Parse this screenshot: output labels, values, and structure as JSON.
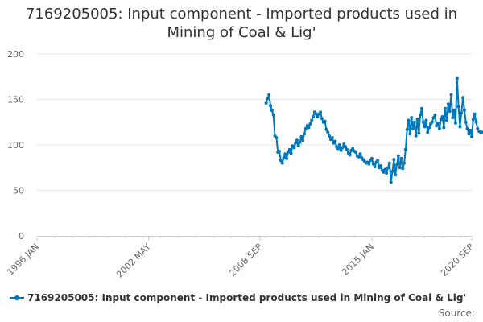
{
  "chart_data": {
    "type": "line",
    "title_lines": [
      "7169205005: Input component - Imported products used in",
      "Mining of Coal & Lig'"
    ],
    "xlabel": "",
    "ylabel": "",
    "x_ticks": [
      "1996 JAN",
      "2002 MAY",
      "2008 SEP",
      "2015 JAN",
      "2020 SEP"
    ],
    "x_range": [
      "1996-01",
      "2020-09"
    ],
    "y_ticks": [
      0,
      50,
      100,
      150,
      200
    ],
    "ylim": [
      0,
      200
    ],
    "grid": true,
    "legend_position": "bottom-left",
    "series": [
      {
        "name": "7169205005: Input component - Imported products used in Mining of Coal & Lig'",
        "color": "#0077bb",
        "points": [
          [
            "2009-01",
            146
          ],
          [
            "2009-02",
            151
          ],
          [
            "2009-03",
            155
          ],
          [
            "2009-04",
            143
          ],
          [
            "2009-05",
            138
          ],
          [
            "2009-06",
            133
          ],
          [
            "2009-07",
            110
          ],
          [
            "2009-08",
            108
          ],
          [
            "2009-09",
            92
          ],
          [
            "2009-10",
            93
          ],
          [
            "2009-11",
            83
          ],
          [
            "2009-12",
            80
          ],
          [
            "2010-01",
            86
          ],
          [
            "2010-02",
            90
          ],
          [
            "2010-03",
            85
          ],
          [
            "2010-04",
            92
          ],
          [
            "2010-05",
            95
          ],
          [
            "2010-06",
            91
          ],
          [
            "2010-07",
            99
          ],
          [
            "2010-08",
            97
          ],
          [
            "2010-09",
            102
          ],
          [
            "2010-10",
            105
          ],
          [
            "2010-11",
            99
          ],
          [
            "2010-12",
            103
          ],
          [
            "2011-01",
            109
          ],
          [
            "2011-02",
            105
          ],
          [
            "2011-03",
            112
          ],
          [
            "2011-04",
            118
          ],
          [
            "2011-05",
            121
          ],
          [
            "2011-06",
            119
          ],
          [
            "2011-07",
            123
          ],
          [
            "2011-08",
            127
          ],
          [
            "2011-09",
            131
          ],
          [
            "2011-10",
            136
          ],
          [
            "2011-11",
            134
          ],
          [
            "2011-12",
            131
          ],
          [
            "2012-01",
            134
          ],
          [
            "2012-02",
            136
          ],
          [
            "2012-03",
            129
          ],
          [
            "2012-04",
            125
          ],
          [
            "2012-05",
            126
          ],
          [
            "2012-06",
            117
          ],
          [
            "2012-07",
            114
          ],
          [
            "2012-08",
            110
          ],
          [
            "2012-09",
            106
          ],
          [
            "2012-10",
            108
          ],
          [
            "2012-11",
            102
          ],
          [
            "2012-12",
            104
          ],
          [
            "2013-01",
            98
          ],
          [
            "2013-02",
            96
          ],
          [
            "2013-03",
            100
          ],
          [
            "2013-04",
            94
          ],
          [
            "2013-05",
            97
          ],
          [
            "2013-06",
            101
          ],
          [
            "2013-07",
            98
          ],
          [
            "2013-08",
            95
          ],
          [
            "2013-09",
            91
          ],
          [
            "2013-10",
            89
          ],
          [
            "2013-11",
            94
          ],
          [
            "2013-12",
            96
          ],
          [
            "2014-01",
            93
          ],
          [
            "2014-02",
            92
          ],
          [
            "2014-03",
            88
          ],
          [
            "2014-04",
            87
          ],
          [
            "2014-05",
            90
          ],
          [
            "2014-06",
            86
          ],
          [
            "2014-07",
            84
          ],
          [
            "2014-08",
            82
          ],
          [
            "2014-09",
            80
          ],
          [
            "2014-10",
            81
          ],
          [
            "2014-11",
            79
          ],
          [
            "2014-12",
            83
          ],
          [
            "2015-01",
            85
          ],
          [
            "2015-02",
            79
          ],
          [
            "2015-03",
            76
          ],
          [
            "2015-04",
            81
          ],
          [
            "2015-05",
            83
          ],
          [
            "2015-06",
            75
          ],
          [
            "2015-07",
            77
          ],
          [
            "2015-08",
            72
          ],
          [
            "2015-09",
            70
          ],
          [
            "2015-10",
            73
          ],
          [
            "2015-11",
            69
          ],
          [
            "2015-12",
            75
          ],
          [
            "2016-01",
            80
          ],
          [
            "2016-02",
            59
          ],
          [
            "2016-03",
            71
          ],
          [
            "2016-04",
            84
          ],
          [
            "2016-05",
            67
          ],
          [
            "2016-06",
            78
          ],
          [
            "2016-07",
            88
          ],
          [
            "2016-08",
            75
          ],
          [
            "2016-09",
            85
          ],
          [
            "2016-10",
            74
          ],
          [
            "2016-11",
            80
          ],
          [
            "2016-12",
            95
          ],
          [
            "2017-01",
            117
          ],
          [
            "2017-02",
            127
          ],
          [
            "2017-03",
            112
          ],
          [
            "2017-04",
            130
          ],
          [
            "2017-05",
            118
          ],
          [
            "2017-06",
            125
          ],
          [
            "2017-07",
            110
          ],
          [
            "2017-08",
            128
          ],
          [
            "2017-09",
            113
          ],
          [
            "2017-10",
            133
          ],
          [
            "2017-11",
            140
          ],
          [
            "2017-12",
            125
          ],
          [
            "2018-01",
            120
          ],
          [
            "2018-02",
            127
          ],
          [
            "2018-03",
            114
          ],
          [
            "2018-04",
            119
          ],
          [
            "2018-05",
            123
          ],
          [
            "2018-06",
            125
          ],
          [
            "2018-07",
            130
          ],
          [
            "2018-08",
            133
          ],
          [
            "2018-09",
            121
          ],
          [
            "2018-10",
            124
          ],
          [
            "2018-11",
            118
          ],
          [
            "2018-12",
            128
          ],
          [
            "2019-01",
            131
          ],
          [
            "2019-02",
            119
          ],
          [
            "2019-03",
            140
          ],
          [
            "2019-04",
            127
          ],
          [
            "2019-05",
            145
          ],
          [
            "2019-06",
            137
          ],
          [
            "2019-07",
            155
          ],
          [
            "2019-08",
            130
          ],
          [
            "2019-09",
            138
          ],
          [
            "2019-10",
            124
          ],
          [
            "2019-11",
            173
          ],
          [
            "2019-12",
            142
          ],
          [
            "2020-01",
            120
          ],
          [
            "2020-02",
            135
          ],
          [
            "2020-03",
            152
          ],
          [
            "2020-04",
            138
          ],
          [
            "2020-05",
            125
          ],
          [
            "2020-06",
            118
          ],
          [
            "2020-07",
            112
          ],
          [
            "2020-08",
            116
          ],
          [
            "2020-09",
            109
          ],
          [
            "2020-10",
            128
          ],
          [
            "2020-11",
            134
          ],
          [
            "2020-12",
            125
          ],
          [
            "2021-01",
            118
          ],
          [
            "2021-02",
            115
          ],
          [
            "2021-03",
            114
          ],
          [
            "2021-04",
            114
          ]
        ]
      }
    ]
  },
  "footer": {
    "source_label": "Source:"
  }
}
